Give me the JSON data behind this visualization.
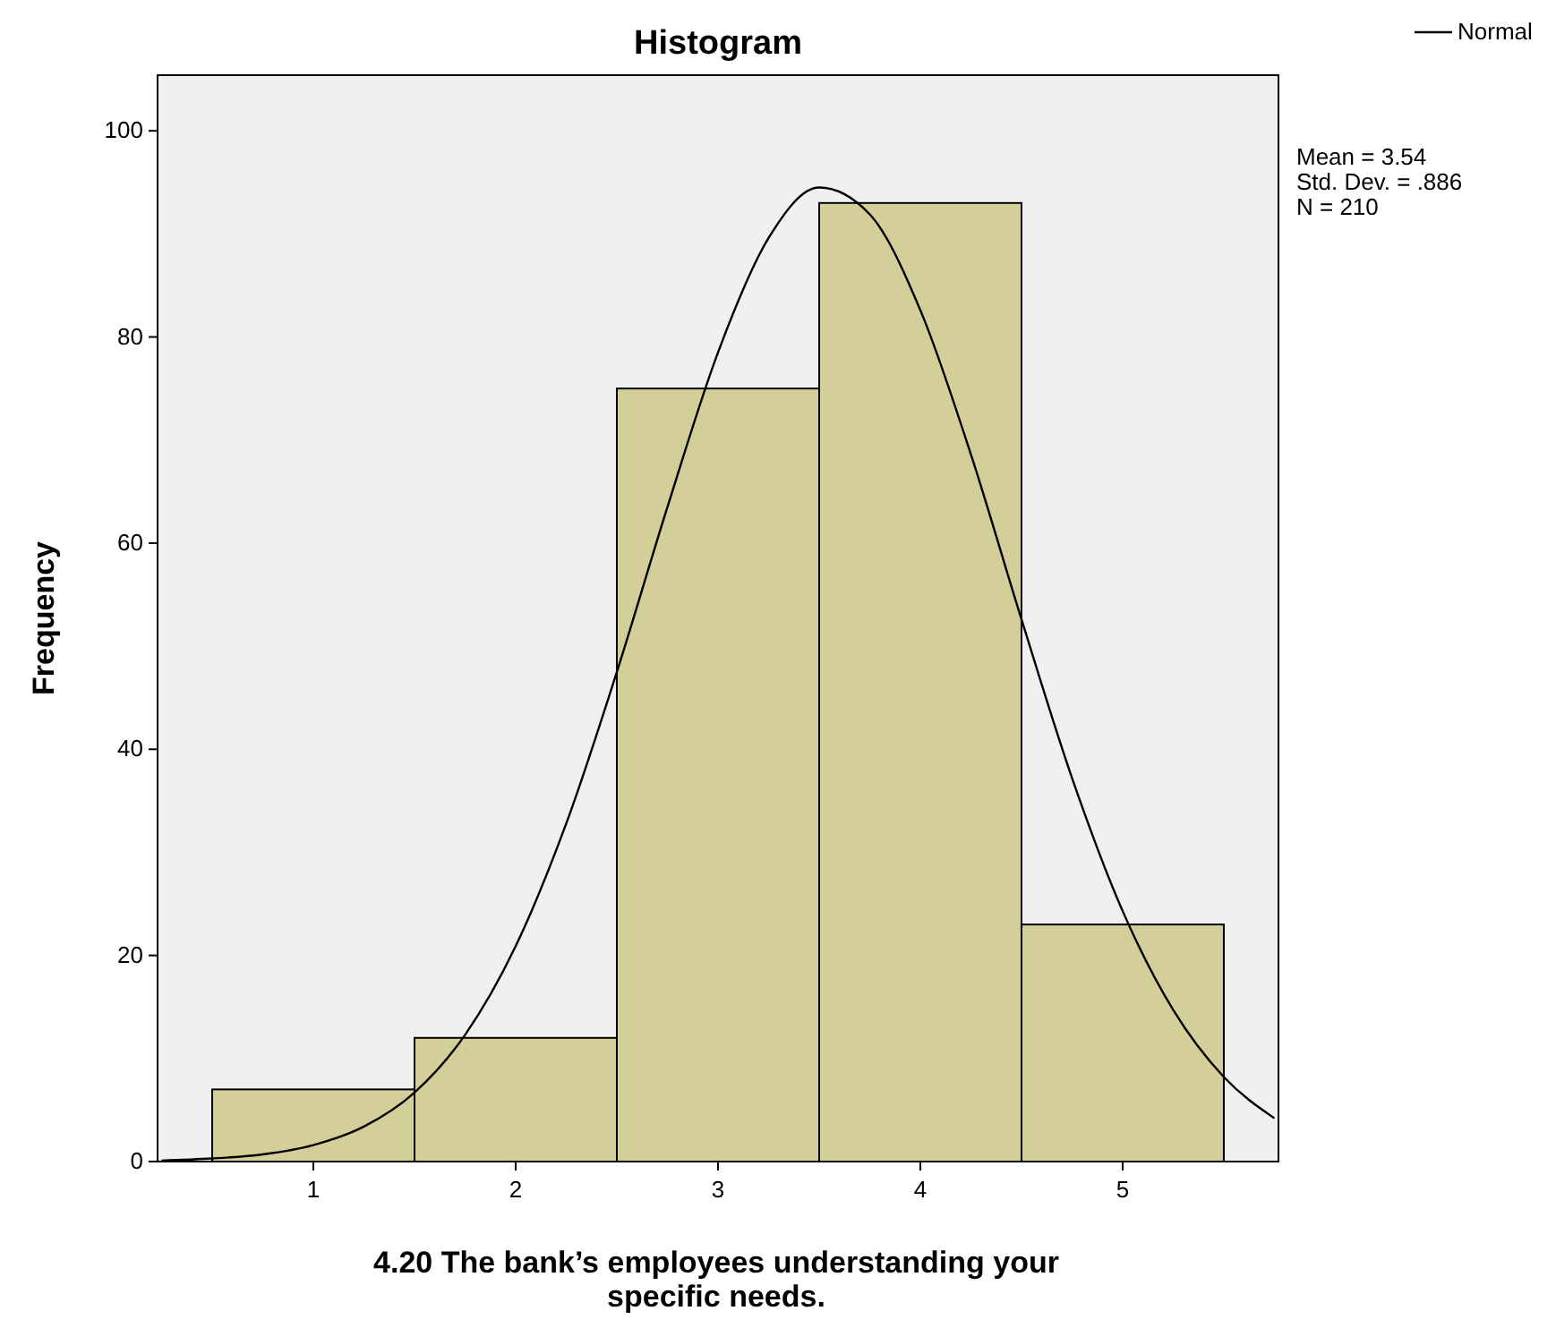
{
  "chart_data": {
    "type": "histogram",
    "title": "Histogram",
    "xlabel": "4.20 The bank’s employees understanding your specific needs.",
    "ylabel": "Frequency",
    "bins": [
      0.5,
      1.5,
      2.5,
      3.5,
      4.5,
      5.5
    ],
    "series": [
      {
        "color": "#d4ce99",
        "values": [
          7,
          12,
          75,
          93,
          23
        ]
      },
      {
        "type": "line",
        "name": "Normal",
        "color": "#000000",
        "x": [
          0.25,
          0.5,
          0.75,
          1,
          1.25,
          1.5,
          1.75,
          2,
          2.25,
          2.5,
          2.75,
          3,
          3.25,
          3.5,
          3.75,
          4,
          4.25,
          4.5,
          4.75,
          5,
          5.25,
          5.5,
          5.75
        ],
        "values": [
          0.1,
          0.3,
          0.7,
          1.6,
          3.4,
          6.7,
          12.3,
          20.9,
          32.8,
          47.5,
          63.5,
          78.5,
          89.6,
          94.5,
          91.9,
          82.6,
          68.6,
          52.6,
          37.2,
          24.3,
          14.7,
          8.2,
          4.2
        ]
      }
    ],
    "xlim": [
      0.23,
      5.77
    ],
    "ylim": [
      0,
      105.4
    ],
    "xticks": [
      1,
      2,
      3,
      4,
      5
    ],
    "yticks": [
      0,
      20,
      40,
      60,
      80,
      100
    ],
    "grid": false,
    "legend": "top right",
    "marker": "none",
    "line_style": "solid",
    "annotations": [
      "Mean = 3.54",
      "Std. Dev. = .886",
      "N = 210"
    ]
  }
}
